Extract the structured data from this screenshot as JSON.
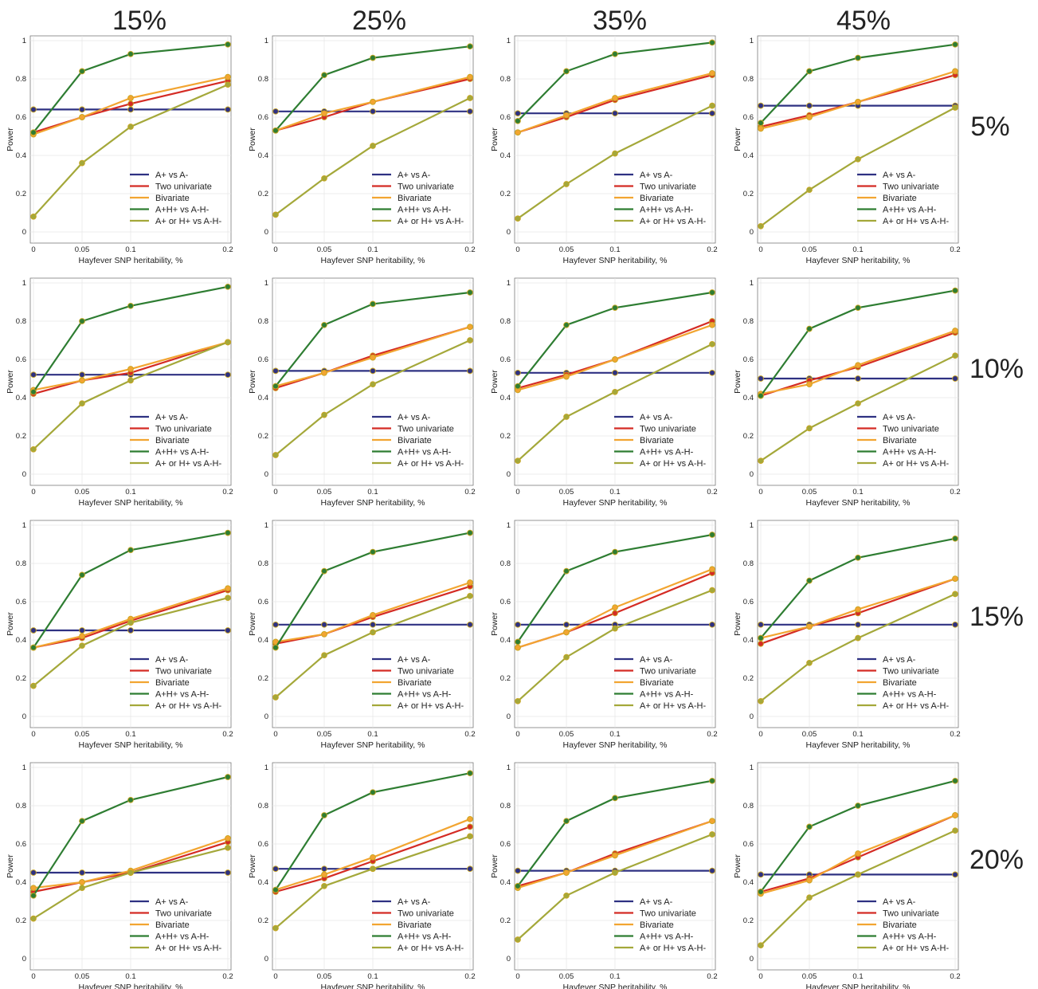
{
  "column_labels": [
    "15%",
    "25%",
    "35%",
    "45%"
  ],
  "row_labels": [
    "5%",
    "10%",
    "15%",
    "20%"
  ],
  "series_colors": {
    "A+ vs A-": "#2e3182",
    "Two univariate": "#d42b24",
    "Bivariate": "#f2a531",
    "A+H+ vs A-H-": "#2e7d32",
    "A+ or H+ vs A-H-": "#a4a83a"
  },
  "chart_data": [
    {
      "type": "line",
      "x": [
        0,
        0.05,
        0.1,
        0.2
      ],
      "xlabel": "Hayfever SNP heritability, %",
      "ylabel": "Power",
      "ylim": [
        0,
        1
      ],
      "grid": true,
      "legend": "bottom-right",
      "series": [
        {
          "name": "A+ vs A-",
          "values": [
            0.64,
            0.64,
            0.64,
            0.64
          ]
        },
        {
          "name": "Two univariate",
          "values": [
            0.52,
            0.6,
            0.67,
            0.79
          ]
        },
        {
          "name": "Bivariate",
          "values": [
            0.51,
            0.6,
            0.7,
            0.81
          ]
        },
        {
          "name": "A+H+ vs A-H-",
          "values": [
            0.52,
            0.84,
            0.93,
            0.98
          ]
        },
        {
          "name": "A+ or H+ vs A-H-",
          "values": [
            0.08,
            0.36,
            0.55,
            0.77
          ]
        }
      ]
    },
    {
      "type": "line",
      "x": [
        0,
        0.05,
        0.1,
        0.2
      ],
      "xlabel": "Hayfever SNP heritability, %",
      "ylabel": "Power",
      "ylim": [
        0,
        1
      ],
      "grid": true,
      "legend": "bottom-right",
      "series": [
        {
          "name": "A+ vs A-",
          "values": [
            0.63,
            0.63,
            0.63,
            0.63
          ]
        },
        {
          "name": "Two univariate",
          "values": [
            0.53,
            0.6,
            0.68,
            0.8
          ]
        },
        {
          "name": "Bivariate",
          "values": [
            0.53,
            0.62,
            0.68,
            0.81
          ]
        },
        {
          "name": "A+H+ vs A-H-",
          "values": [
            0.53,
            0.82,
            0.91,
            0.97
          ]
        },
        {
          "name": "A+ or H+ vs A-H-",
          "values": [
            0.09,
            0.28,
            0.45,
            0.7
          ]
        }
      ]
    },
    {
      "type": "line",
      "x": [
        0,
        0.05,
        0.1,
        0.2
      ],
      "xlabel": "Hayfever SNP heritability, %",
      "ylabel": "Power",
      "ylim": [
        0,
        1
      ],
      "grid": true,
      "legend": "bottom-right",
      "series": [
        {
          "name": "A+ vs A-",
          "values": [
            0.62,
            0.62,
            0.62,
            0.62
          ]
        },
        {
          "name": "Two univariate",
          "values": [
            0.52,
            0.6,
            0.69,
            0.82
          ]
        },
        {
          "name": "Bivariate",
          "values": [
            0.52,
            0.61,
            0.7,
            0.83
          ]
        },
        {
          "name": "A+H+ vs A-H-",
          "values": [
            0.58,
            0.84,
            0.93,
            0.99
          ]
        },
        {
          "name": "A+ or H+ vs A-H-",
          "values": [
            0.07,
            0.25,
            0.41,
            0.66
          ]
        }
      ]
    },
    {
      "type": "line",
      "x": [
        0,
        0.05,
        0.1,
        0.2
      ],
      "xlabel": "Hayfever SNP heritability, %",
      "ylabel": "Power",
      "ylim": [
        0,
        1
      ],
      "grid": true,
      "legend": "bottom-right",
      "series": [
        {
          "name": "A+ vs A-",
          "values": [
            0.66,
            0.66,
            0.66,
            0.66
          ]
        },
        {
          "name": "Two univariate",
          "values": [
            0.55,
            0.61,
            0.68,
            0.82
          ]
        },
        {
          "name": "Bivariate",
          "values": [
            0.54,
            0.6,
            0.68,
            0.84
          ]
        },
        {
          "name": "A+H+ vs A-H-",
          "values": [
            0.57,
            0.84,
            0.91,
            0.98
          ]
        },
        {
          "name": "A+ or H+ vs A-H-",
          "values": [
            0.03,
            0.22,
            0.38,
            0.65
          ]
        }
      ]
    },
    {
      "type": "line",
      "x": [
        0,
        0.05,
        0.1,
        0.2
      ],
      "xlabel": "Hayfever SNP heritability, %",
      "ylabel": "Power",
      "ylim": [
        0,
        1
      ],
      "grid": true,
      "legend": "bottom-right",
      "series": [
        {
          "name": "A+ vs A-",
          "values": [
            0.52,
            0.52,
            0.52,
            0.52
          ]
        },
        {
          "name": "Two univariate",
          "values": [
            0.42,
            0.49,
            0.53,
            0.69
          ]
        },
        {
          "name": "Bivariate",
          "values": [
            0.44,
            0.49,
            0.55,
            0.69
          ]
        },
        {
          "name": "A+H+ vs A-H-",
          "values": [
            0.43,
            0.8,
            0.88,
            0.98
          ]
        },
        {
          "name": "A+ or H+ vs A-H-",
          "values": [
            0.13,
            0.37,
            0.49,
            0.69
          ]
        }
      ]
    },
    {
      "type": "line",
      "x": [
        0,
        0.05,
        0.1,
        0.2
      ],
      "xlabel": "Hayfever SNP heritability, %",
      "ylabel": "Power",
      "ylim": [
        0,
        1
      ],
      "grid": true,
      "legend": "bottom-right",
      "series": [
        {
          "name": "A+ vs A-",
          "values": [
            0.54,
            0.54,
            0.54,
            0.54
          ]
        },
        {
          "name": "Two univariate",
          "values": [
            0.45,
            0.53,
            0.62,
            0.77
          ]
        },
        {
          "name": "Bivariate",
          "values": [
            0.46,
            0.53,
            0.61,
            0.77
          ]
        },
        {
          "name": "A+H+ vs A-H-",
          "values": [
            0.46,
            0.78,
            0.89,
            0.95
          ]
        },
        {
          "name": "A+ or H+ vs A-H-",
          "values": [
            0.1,
            0.31,
            0.47,
            0.7
          ]
        }
      ]
    },
    {
      "type": "line",
      "x": [
        0,
        0.05,
        0.1,
        0.2
      ],
      "xlabel": "Hayfever SNP heritability, %",
      "ylabel": "Power",
      "ylim": [
        0,
        1
      ],
      "grid": true,
      "legend": "bottom-right",
      "series": [
        {
          "name": "A+ vs A-",
          "values": [
            0.53,
            0.53,
            0.53,
            0.53
          ]
        },
        {
          "name": "Two univariate",
          "values": [
            0.45,
            0.52,
            0.6,
            0.8
          ]
        },
        {
          "name": "Bivariate",
          "values": [
            0.44,
            0.51,
            0.6,
            0.78
          ]
        },
        {
          "name": "A+H+ vs A-H-",
          "values": [
            0.46,
            0.78,
            0.87,
            0.95
          ]
        },
        {
          "name": "A+ or H+ vs A-H-",
          "values": [
            0.07,
            0.3,
            0.43,
            0.68
          ]
        }
      ]
    },
    {
      "type": "line",
      "x": [
        0,
        0.05,
        0.1,
        0.2
      ],
      "xlabel": "Hayfever SNP heritability, %",
      "ylabel": "Power",
      "ylim": [
        0,
        1
      ],
      "grid": true,
      "legend": "bottom-right",
      "series": [
        {
          "name": "A+ vs A-",
          "values": [
            0.5,
            0.5,
            0.5,
            0.5
          ]
        },
        {
          "name": "Two univariate",
          "values": [
            0.41,
            0.49,
            0.56,
            0.74
          ]
        },
        {
          "name": "Bivariate",
          "values": [
            0.42,
            0.47,
            0.57,
            0.75
          ]
        },
        {
          "name": "A+H+ vs A-H-",
          "values": [
            0.41,
            0.76,
            0.87,
            0.96
          ]
        },
        {
          "name": "A+ or H+ vs A-H-",
          "values": [
            0.07,
            0.24,
            0.37,
            0.62
          ]
        }
      ]
    },
    {
      "type": "line",
      "x": [
        0,
        0.05,
        0.1,
        0.2
      ],
      "xlabel": "Hayfever SNP heritability, %",
      "ylabel": "Power",
      "ylim": [
        0,
        1
      ],
      "grid": true,
      "legend": "bottom-right",
      "series": [
        {
          "name": "A+ vs A-",
          "values": [
            0.45,
            0.45,
            0.45,
            0.45
          ]
        },
        {
          "name": "Two univariate",
          "values": [
            0.36,
            0.41,
            0.5,
            0.66
          ]
        },
        {
          "name": "Bivariate",
          "values": [
            0.36,
            0.42,
            0.51,
            0.67
          ]
        },
        {
          "name": "A+H+ vs A-H-",
          "values": [
            0.36,
            0.74,
            0.87,
            0.96
          ]
        },
        {
          "name": "A+ or H+ vs A-H-",
          "values": [
            0.16,
            0.37,
            0.49,
            0.62
          ]
        }
      ]
    },
    {
      "type": "line",
      "x": [
        0,
        0.05,
        0.1,
        0.2
      ],
      "xlabel": "Hayfever SNP heritability, %",
      "ylabel": "Power",
      "ylim": [
        0,
        1
      ],
      "grid": true,
      "legend": "bottom-right",
      "series": [
        {
          "name": "A+ vs A-",
          "values": [
            0.48,
            0.48,
            0.48,
            0.48
          ]
        },
        {
          "name": "Two univariate",
          "values": [
            0.38,
            0.43,
            0.52,
            0.68
          ]
        },
        {
          "name": "Bivariate",
          "values": [
            0.39,
            0.43,
            0.53,
            0.7
          ]
        },
        {
          "name": "A+H+ vs A-H-",
          "values": [
            0.36,
            0.76,
            0.86,
            0.96
          ]
        },
        {
          "name": "A+ or H+ vs A-H-",
          "values": [
            0.1,
            0.32,
            0.44,
            0.63
          ]
        }
      ]
    },
    {
      "type": "line",
      "x": [
        0,
        0.05,
        0.1,
        0.2
      ],
      "xlabel": "Hayfever SNP heritability, %",
      "ylabel": "Power",
      "ylim": [
        0,
        1
      ],
      "grid": true,
      "legend": "bottom-right",
      "series": [
        {
          "name": "A+ vs A-",
          "values": [
            0.48,
            0.48,
            0.48,
            0.48
          ]
        },
        {
          "name": "Two univariate",
          "values": [
            0.36,
            0.44,
            0.54,
            0.75
          ]
        },
        {
          "name": "Bivariate",
          "values": [
            0.36,
            0.44,
            0.57,
            0.77
          ]
        },
        {
          "name": "A+H+ vs A-H-",
          "values": [
            0.39,
            0.76,
            0.86,
            0.95
          ]
        },
        {
          "name": "A+ or H+ vs A-H-",
          "values": [
            0.08,
            0.31,
            0.46,
            0.66
          ]
        }
      ]
    },
    {
      "type": "line",
      "x": [
        0,
        0.05,
        0.1,
        0.2
      ],
      "xlabel": "Hayfever SNP heritability, %",
      "ylabel": "Power",
      "ylim": [
        0,
        1
      ],
      "grid": true,
      "legend": "bottom-right",
      "series": [
        {
          "name": "A+ vs A-",
          "values": [
            0.48,
            0.48,
            0.48,
            0.48
          ]
        },
        {
          "name": "Two univariate",
          "values": [
            0.38,
            0.47,
            0.54,
            0.72
          ]
        },
        {
          "name": "Bivariate",
          "values": [
            0.41,
            0.47,
            0.56,
            0.72
          ]
        },
        {
          "name": "A+H+ vs A-H-",
          "values": [
            0.41,
            0.71,
            0.83,
            0.93
          ]
        },
        {
          "name": "A+ or H+ vs A-H-",
          "values": [
            0.08,
            0.28,
            0.41,
            0.64
          ]
        }
      ]
    },
    {
      "type": "line",
      "x": [
        0,
        0.05,
        0.1,
        0.2
      ],
      "xlabel": "Hayfever SNP heritability, %",
      "ylabel": "Power",
      "ylim": [
        0,
        1
      ],
      "grid": true,
      "legend": "bottom-right",
      "series": [
        {
          "name": "A+ vs A-",
          "values": [
            0.45,
            0.45,
            0.45,
            0.45
          ]
        },
        {
          "name": "Two univariate",
          "values": [
            0.35,
            0.4,
            0.45,
            0.61
          ]
        },
        {
          "name": "Bivariate",
          "values": [
            0.37,
            0.4,
            0.46,
            0.63
          ]
        },
        {
          "name": "A+H+ vs A-H-",
          "values": [
            0.33,
            0.72,
            0.83,
            0.95
          ]
        },
        {
          "name": "A+ or H+ vs A-H-",
          "values": [
            0.21,
            0.37,
            0.45,
            0.58
          ]
        }
      ]
    },
    {
      "type": "line",
      "x": [
        0,
        0.05,
        0.1,
        0.2
      ],
      "xlabel": "Hayfever SNP heritability, %",
      "ylabel": "Power",
      "ylim": [
        0,
        1
      ],
      "grid": true,
      "legend": "bottom-right",
      "series": [
        {
          "name": "A+ vs A-",
          "values": [
            0.47,
            0.47,
            0.47,
            0.47
          ]
        },
        {
          "name": "Two univariate",
          "values": [
            0.35,
            0.42,
            0.51,
            0.69
          ]
        },
        {
          "name": "Bivariate",
          "values": [
            0.36,
            0.44,
            0.53,
            0.73
          ]
        },
        {
          "name": "A+H+ vs A-H-",
          "values": [
            0.36,
            0.75,
            0.87,
            0.97
          ]
        },
        {
          "name": "A+ or H+ vs A-H-",
          "values": [
            0.16,
            0.38,
            0.47,
            0.64
          ]
        }
      ]
    },
    {
      "type": "line",
      "x": [
        0,
        0.05,
        0.1,
        0.2
      ],
      "xlabel": "Hayfever SNP heritability, %",
      "ylabel": "Power",
      "ylim": [
        0,
        1
      ],
      "grid": true,
      "legend": "bottom-right",
      "series": [
        {
          "name": "A+ vs A-",
          "values": [
            0.46,
            0.46,
            0.46,
            0.46
          ]
        },
        {
          "name": "Two univariate",
          "values": [
            0.38,
            0.45,
            0.55,
            0.72
          ]
        },
        {
          "name": "Bivariate",
          "values": [
            0.37,
            0.45,
            0.54,
            0.72
          ]
        },
        {
          "name": "A+H+ vs A-H-",
          "values": [
            0.38,
            0.72,
            0.84,
            0.93
          ]
        },
        {
          "name": "A+ or H+ vs A-H-",
          "values": [
            0.1,
            0.33,
            0.45,
            0.65
          ]
        }
      ]
    },
    {
      "type": "line",
      "x": [
        0,
        0.05,
        0.1,
        0.2
      ],
      "xlabel": "Hayfever SNP heritability, %",
      "ylabel": "Power",
      "ylim": [
        0,
        1
      ],
      "grid": true,
      "legend": "bottom-right",
      "series": [
        {
          "name": "A+ vs A-",
          "values": [
            0.44,
            0.44,
            0.44,
            0.44
          ]
        },
        {
          "name": "Two univariate",
          "values": [
            0.35,
            0.42,
            0.53,
            0.75
          ]
        },
        {
          "name": "Bivariate",
          "values": [
            0.34,
            0.41,
            0.55,
            0.75
          ]
        },
        {
          "name": "A+H+ vs A-H-",
          "values": [
            0.35,
            0.69,
            0.8,
            0.93
          ]
        },
        {
          "name": "A+ or H+ vs A-H-",
          "values": [
            0.07,
            0.32,
            0.44,
            0.67
          ]
        }
      ]
    }
  ]
}
